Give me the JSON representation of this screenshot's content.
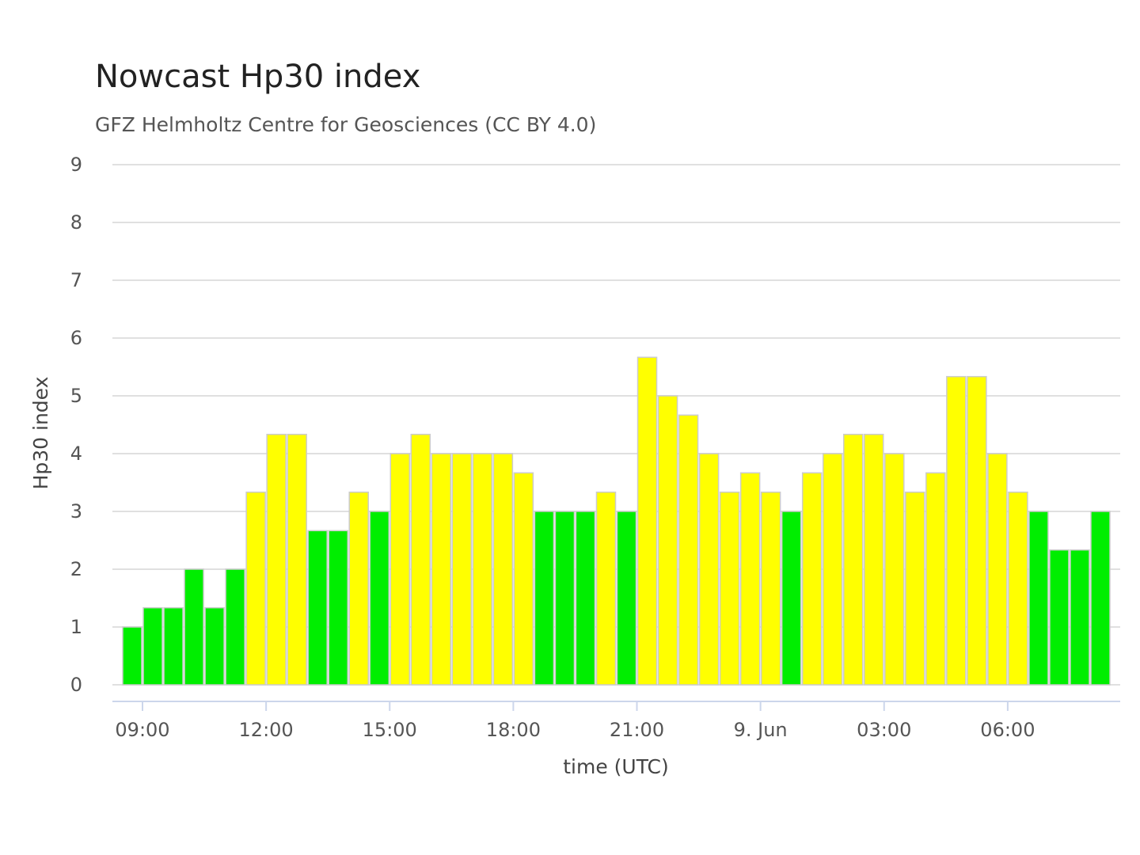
{
  "chart_data": {
    "type": "bar",
    "title": "Nowcast Hp30 index",
    "subtitle": "GFZ Helmholtz Centre for Geosciences (CC BY 4.0)",
    "xlabel": "time (UTC)",
    "ylabel": "Hp30 index",
    "ylim": [
      0,
      9
    ],
    "yticks": [
      "0",
      "1",
      "2",
      "3",
      "4",
      "5",
      "6",
      "7",
      "8",
      "9"
    ],
    "xticks": [
      "09:00",
      "12:00",
      "15:00",
      "18:00",
      "21:00",
      "9. Jun",
      "03:00",
      "06:00"
    ],
    "grid": true,
    "legend": "none",
    "interval": "30 min",
    "values": [
      1.0,
      1.333,
      1.333,
      2.0,
      1.333,
      2.0,
      3.333,
      4.333,
      4.333,
      2.667,
      2.667,
      3.333,
      3.0,
      4.0,
      4.333,
      4.0,
      4.0,
      4.0,
      4.0,
      3.667,
      3.0,
      3.0,
      3.0,
      3.333,
      3.0,
      5.667,
      5.0,
      4.667,
      4.0,
      3.333,
      3.667,
      3.333,
      3.0,
      3.667,
      4.0,
      4.333,
      4.333,
      4.0,
      3.333,
      3.667,
      5.333,
      5.333,
      4.0,
      3.333,
      3.0,
      2.333,
      2.333,
      3.0
    ],
    "colors": {
      "green": "#00ee00",
      "yellow": "#ffff00",
      "bar_border": "#cccccc",
      "grid": "#e0e0e0",
      "x_axis": "#ccd6eb"
    }
  }
}
